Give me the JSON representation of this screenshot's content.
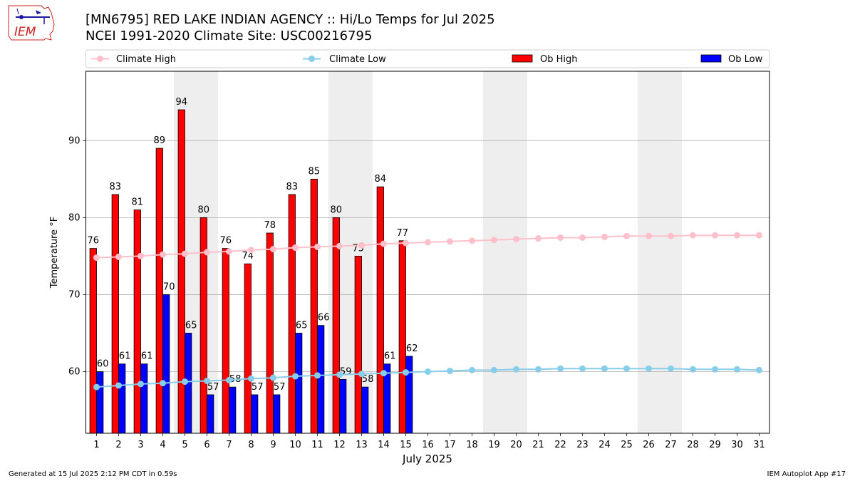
{
  "title": "[MN6795] RED LAKE INDIAN AGENCY :: Hi/Lo Temps for Jul 2025",
  "subtitle": "NCEI 1991-2020 Climate Site: USC00216795",
  "logo_text": "IEM",
  "footer_left": "Generated at 15 Jul 2025 2:12 PM CDT in 0.59s",
  "footer_right": "IEM Autoplot App #17",
  "colors": {
    "ob_high": "#ff0000",
    "ob_low": "#0000ff",
    "climate_high": "#ffc0cb",
    "climate_low": "#87ceeb",
    "weekend_shade": "#eeeeee",
    "grid": "#b0b0b0"
  },
  "chart_data": {
    "type": "bar",
    "xlabel": "July 2025",
    "ylabel": "Temperature °F",
    "ylim": [
      52,
      99
    ],
    "yticks": [
      60,
      70,
      80,
      90
    ],
    "grid": "horizontal",
    "legend_position": "top",
    "days": [
      1,
      2,
      3,
      4,
      5,
      6,
      7,
      8,
      9,
      10,
      11,
      12,
      13,
      14,
      15,
      16,
      17,
      18,
      19,
      20,
      21,
      22,
      23,
      24,
      25,
      26,
      27,
      28,
      29,
      30,
      31
    ],
    "weekend_days": [
      5,
      6,
      12,
      13,
      19,
      20,
      26,
      27
    ],
    "series": [
      {
        "name": "Climate High",
        "kind": "line",
        "values": [
          74.8,
          74.9,
          75.0,
          75.2,
          75.3,
          75.5,
          75.6,
          75.8,
          75.9,
          76.1,
          76.2,
          76.3,
          76.4,
          76.6,
          76.7,
          76.8,
          76.9,
          77.0,
          77.1,
          77.2,
          77.3,
          77.4,
          77.4,
          77.5,
          77.6,
          77.6,
          77.6,
          77.7,
          77.7,
          77.7,
          77.7
        ]
      },
      {
        "name": "Climate Low",
        "kind": "line",
        "values": [
          58.0,
          58.2,
          58.4,
          58.5,
          58.7,
          58.8,
          58.9,
          59.1,
          59.2,
          59.4,
          59.5,
          59.6,
          59.7,
          59.8,
          59.9,
          60.0,
          60.1,
          60.2,
          60.2,
          60.3,
          60.3,
          60.4,
          60.4,
          60.4,
          60.4,
          60.4,
          60.4,
          60.3,
          60.3,
          60.3,
          60.2
        ]
      },
      {
        "name": "Ob High",
        "kind": "bar",
        "values": [
          76,
          83,
          81,
          89,
          94,
          80,
          76,
          74,
          78,
          83,
          85,
          80,
          75,
          84,
          77
        ]
      },
      {
        "name": "Ob Low",
        "kind": "bar",
        "values": [
          60,
          61,
          61,
          70,
          65,
          57,
          58,
          57,
          57,
          65,
          66,
          59,
          58,
          61,
          62
        ]
      }
    ]
  }
}
